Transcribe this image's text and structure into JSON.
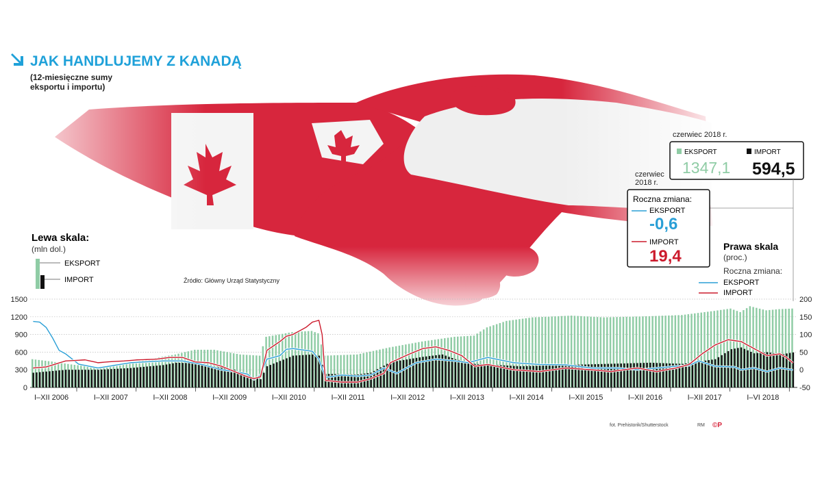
{
  "title": "JAK HANDLUJEMY Z KANADĄ",
  "subtitle_line1": "(12-miesięczne sumy",
  "subtitle_line2": "eksportu i importu)",
  "source": "Źródło: Główny Urząd Statystyczny",
  "photo_credit": "fot. Prehistorik/Shutterstock",
  "author": "RM",
  "logo": "©P",
  "colors": {
    "accent": "#1fa1d9",
    "export_bar": "#8fcca5",
    "import_bar": "#111111",
    "export_line": "#2a9fd6",
    "import_line": "#cc1a2c"
  },
  "left_scale": {
    "title": "Lewa skala:",
    "unit": "(mln dol.)",
    "export_label": "EKSPORT",
    "import_label": "IMPORT"
  },
  "right_scale": {
    "title": "Prawa skala",
    "unit": "(proc.)",
    "change_label": "Roczna zmiana:",
    "export_label": "EKSPORT",
    "import_label": "IMPORT"
  },
  "box_levels": {
    "date": "czerwiec 2018 r.",
    "export_label": "EKSPORT",
    "export_value": "1347,1",
    "import_label": "IMPORT",
    "import_value": "594,5"
  },
  "box_change": {
    "date_line1": "czerwiec",
    "date_line2": "2018 r.",
    "label": "Roczna zmiana:",
    "export_label": "EKSPORT",
    "export_value": "-0,6",
    "import_label": "IMPORT",
    "import_value": "19,4"
  },
  "chart_data": {
    "type": "bar",
    "y_left_ticks": [
      "1500",
      "1200",
      "900",
      "600",
      "300",
      "0"
    ],
    "y_left_range": [
      0,
      1500
    ],
    "y_right_ticks": [
      "200",
      "150",
      "100",
      "50",
      "0",
      "-50"
    ],
    "y_right_range": [
      -50,
      200
    ],
    "x_labels": [
      "I–XII 2006",
      "I–XII 2007",
      "I–XII 2008",
      "I–XII 2009",
      "I–XII 2010",
      "I–XII 2011",
      "I–XII 2012",
      "I–XII 2013",
      "I–XII 2014",
      "I–XII 2015",
      "I–XII 2016",
      "I–XII 2017",
      "I–VI 2018"
    ],
    "series": [
      {
        "name": "EKSPORT",
        "axis": "left",
        "kind": "bar",
        "anchors": [
          [
            0,
            480
          ],
          [
            6,
            440
          ],
          [
            12,
            390
          ],
          [
            20,
            340
          ],
          [
            28,
            400
          ],
          [
            36,
            480
          ],
          [
            44,
            560
          ],
          [
            50,
            640
          ],
          [
            56,
            640
          ],
          [
            60,
            600
          ],
          [
            64,
            560
          ],
          [
            70,
            540
          ],
          [
            72,
            860
          ],
          [
            80,
            940
          ],
          [
            86,
            960
          ],
          [
            88,
            920
          ],
          [
            90,
            540
          ],
          [
            100,
            560
          ],
          [
            110,
            680
          ],
          [
            120,
            780
          ],
          [
            130,
            860
          ],
          [
            136,
            880
          ],
          [
            140,
            1020
          ],
          [
            146,
            1130
          ],
          [
            154,
            1190
          ],
          [
            166,
            1220
          ],
          [
            176,
            1190
          ],
          [
            190,
            1210
          ],
          [
            200,
            1230
          ],
          [
            210,
            1300
          ],
          [
            215,
            1340
          ],
          [
            218,
            1280
          ],
          [
            221,
            1380
          ],
          [
            226,
            1310
          ],
          [
            230,
            1330
          ],
          [
            234,
            1340
          ]
        ]
      },
      {
        "name": "IMPORT",
        "axis": "left",
        "kind": "bar",
        "anchors": [
          [
            0,
            250
          ],
          [
            10,
            300
          ],
          [
            20,
            300
          ],
          [
            30,
            330
          ],
          [
            40,
            380
          ],
          [
            44,
            420
          ],
          [
            50,
            410
          ],
          [
            56,
            350
          ],
          [
            62,
            300
          ],
          [
            66,
            200
          ],
          [
            70,
            140
          ],
          [
            72,
            360
          ],
          [
            80,
            540
          ],
          [
            86,
            560
          ],
          [
            88,
            540
          ],
          [
            90,
            230
          ],
          [
            100,
            220
          ],
          [
            104,
            250
          ],
          [
            110,
            430
          ],
          [
            120,
            520
          ],
          [
            126,
            560
          ],
          [
            130,
            480
          ],
          [
            136,
            400
          ],
          [
            150,
            360
          ],
          [
            170,
            390
          ],
          [
            190,
            420
          ],
          [
            200,
            400
          ],
          [
            210,
            480
          ],
          [
            215,
            650
          ],
          [
            218,
            680
          ],
          [
            222,
            580
          ],
          [
            226,
            600
          ],
          [
            230,
            560
          ],
          [
            234,
            594
          ]
        ]
      },
      {
        "name": "EKSPORT",
        "axis": "right",
        "kind": "line",
        "anchors": [
          [
            0,
            137
          ],
          [
            2,
            135
          ],
          [
            4,
            120
          ],
          [
            6,
            90
          ],
          [
            8,
            55
          ],
          [
            10,
            45
          ],
          [
            14,
            16
          ],
          [
            20,
            5
          ],
          [
            30,
            20
          ],
          [
            40,
            25
          ],
          [
            46,
            25
          ],
          [
            52,
            15
          ],
          [
            58,
            0
          ],
          [
            62,
            -5
          ],
          [
            66,
            -12
          ],
          [
            68,
            -28
          ],
          [
            70,
            -15
          ],
          [
            72,
            30
          ],
          [
            76,
            40
          ],
          [
            78,
            58
          ],
          [
            80,
            60
          ],
          [
            84,
            55
          ],
          [
            86,
            52
          ],
          [
            88,
            30
          ],
          [
            90,
            -22
          ],
          [
            95,
            -15
          ],
          [
            100,
            -18
          ],
          [
            104,
            -15
          ],
          [
            108,
            5
          ],
          [
            112,
            -10
          ],
          [
            118,
            20
          ],
          [
            124,
            30
          ],
          [
            130,
            25
          ],
          [
            134,
            20
          ],
          [
            140,
            35
          ],
          [
            148,
            20
          ],
          [
            156,
            15
          ],
          [
            164,
            14
          ],
          [
            172,
            5
          ],
          [
            180,
            5
          ],
          [
            186,
            0
          ],
          [
            192,
            5
          ],
          [
            198,
            10
          ],
          [
            202,
            12
          ],
          [
            205,
            25
          ],
          [
            210,
            10
          ],
          [
            216,
            8
          ],
          [
            218,
            0
          ],
          [
            222,
            5
          ],
          [
            226,
            -5
          ],
          [
            230,
            5
          ],
          [
            234,
            -0.6
          ]
        ]
      },
      {
        "name": "IMPORT",
        "axis": "right",
        "kind": "line",
        "anchors": [
          [
            0,
            5
          ],
          [
            4,
            8
          ],
          [
            10,
            25
          ],
          [
            16,
            28
          ],
          [
            20,
            20
          ],
          [
            24,
            23
          ],
          [
            28,
            25
          ],
          [
            32,
            28
          ],
          [
            38,
            30
          ],
          [
            42,
            35
          ],
          [
            46,
            35
          ],
          [
            50,
            22
          ],
          [
            54,
            20
          ],
          [
            58,
            10
          ],
          [
            62,
            -5
          ],
          [
            66,
            -20
          ],
          [
            68,
            -25
          ],
          [
            70,
            -20
          ],
          [
            72,
            55
          ],
          [
            76,
            80
          ],
          [
            78,
            95
          ],
          [
            80,
            100
          ],
          [
            84,
            120
          ],
          [
            86,
            135
          ],
          [
            88,
            140
          ],
          [
            89,
            100
          ],
          [
            90,
            -30
          ],
          [
            95,
            -35
          ],
          [
            100,
            -35
          ],
          [
            104,
            -25
          ],
          [
            108,
            -10
          ],
          [
            110,
            20
          ],
          [
            116,
            45
          ],
          [
            120,
            60
          ],
          [
            124,
            65
          ],
          [
            128,
            55
          ],
          [
            132,
            40
          ],
          [
            136,
            10
          ],
          [
            140,
            15
          ],
          [
            148,
            0
          ],
          [
            156,
            -5
          ],
          [
            164,
            5
          ],
          [
            172,
            0
          ],
          [
            178,
            -5
          ],
          [
            186,
            5
          ],
          [
            192,
            -5
          ],
          [
            198,
            5
          ],
          [
            202,
            15
          ],
          [
            204,
            30
          ],
          [
            206,
            45
          ],
          [
            210,
            70
          ],
          [
            214,
            85
          ],
          [
            218,
            80
          ],
          [
            222,
            60
          ],
          [
            226,
            40
          ],
          [
            230,
            45
          ],
          [
            232,
            35
          ],
          [
            234,
            19.4
          ]
        ]
      }
    ],
    "months": 235
  }
}
